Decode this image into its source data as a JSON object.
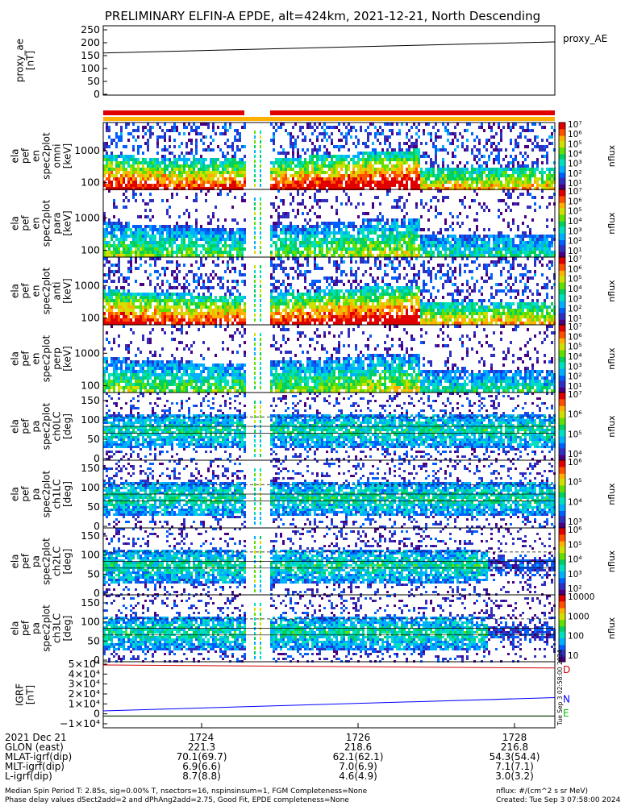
{
  "title": "PRELIMINARY ELFIN-A EPDE, alt=424km, 2021-12-21, North Descending",
  "colors": {
    "bar_red": "#e00000",
    "bar_yellow": "#ffb000",
    "D": "#d00000",
    "N": "#0000ff",
    "E": "#00c000"
  },
  "chart_data": [
    {
      "type": "line",
      "panel": "proxy_ae",
      "ylabel": [
        "proxy_ae",
        "[nT]"
      ],
      "ylim": [
        0,
        250
      ],
      "yticks": [
        "250",
        "200",
        "150",
        "100",
        "50",
        "0"
      ],
      "series": [
        {
          "name": "proxy_AE",
          "values": [
            157,
            200
          ]
        }
      ]
    },
    {
      "type": "heatmap",
      "panel": "ela pef en spec2plot omni",
      "ylabel": [
        "ela",
        "pef",
        "en",
        "spec2plot",
        "omni",
        "[keV]"
      ],
      "yticks": [
        "1000",
        "100"
      ],
      "colorbar": {
        "label": "nflux",
        "ticks": [
          "10⁷",
          "10⁶",
          "10⁵",
          "10⁴",
          "10³",
          "10²",
          "10¹"
        ]
      }
    },
    {
      "type": "heatmap",
      "panel": "ela pef en spec2plot para",
      "ylabel": [
        "ela",
        "pef",
        "en",
        "spec2plot",
        "para",
        "[keV]"
      ],
      "yticks": [
        "1000",
        "100"
      ],
      "colorbar": {
        "label": "nflux",
        "ticks": [
          "10⁷",
          "10⁶",
          "10⁵",
          "10⁴",
          "10³",
          "10²",
          "10¹"
        ]
      }
    },
    {
      "type": "heatmap",
      "panel": "ela pef en spec2plot anti",
      "ylabel": [
        "ela",
        "pef",
        "en",
        "spec2plot",
        "anti",
        "[keV]"
      ],
      "yticks": [
        "1000",
        "100"
      ],
      "colorbar": {
        "label": "nflux",
        "ticks": [
          "10⁷",
          "10⁶",
          "10⁵",
          "10⁴",
          "10³",
          "10²",
          "10¹"
        ]
      }
    },
    {
      "type": "heatmap",
      "panel": "ela pef en spec2plot perp",
      "ylabel": [
        "ela",
        "pef",
        "en",
        "spec2plot",
        "perp",
        "[keV]"
      ],
      "yticks": [
        "1000",
        "100"
      ],
      "colorbar": {
        "label": "nflux",
        "ticks": [
          "10⁷",
          "10⁶",
          "10⁵",
          "10⁴",
          "10³",
          "10²",
          "10¹"
        ]
      }
    },
    {
      "type": "heatmap",
      "panel": "ela pef pa spec2plot ch0LC",
      "ylabel": [
        "ela",
        "pef",
        "pa",
        "spec2plot",
        "ch0LC",
        "[deg]"
      ],
      "yticks": [
        "150",
        "100",
        "50",
        "0"
      ],
      "colorbar": {
        "label": "nflux",
        "ticks": [
          "10⁷",
          "10⁶",
          "10⁵",
          "10⁴"
        ]
      }
    },
    {
      "type": "heatmap",
      "panel": "ela pef pa spec2plot ch1LC",
      "ylabel": [
        "ela",
        "pef",
        "pa",
        "spec2plot",
        "ch1LC",
        "[deg]"
      ],
      "yticks": [
        "150",
        "100",
        "50",
        "0"
      ],
      "colorbar": {
        "label": "nflux",
        "ticks": [
          "10⁶",
          "10⁵",
          "10⁴",
          "10³"
        ]
      }
    },
    {
      "type": "heatmap",
      "panel": "ela pef pa spec2plot ch2LC",
      "ylabel": [
        "ela",
        "pef",
        "pa",
        "spec2plot",
        "ch2LC",
        "[deg]"
      ],
      "yticks": [
        "150",
        "100",
        "50",
        "0"
      ],
      "colorbar": {
        "label": "nflux",
        "ticks": [
          "10⁶",
          "10⁵",
          "10⁴",
          "10³",
          "10²"
        ]
      }
    },
    {
      "type": "heatmap",
      "panel": "ela pef pa spec2plot ch3LC",
      "ylabel": [
        "ela",
        "pef",
        "pa",
        "spec2plot",
        "ch3LC",
        "[deg]"
      ],
      "yticks": [
        "150",
        "100",
        "50",
        "0"
      ],
      "colorbar": {
        "label": "nflux",
        "ticks": [
          "10000",
          "1000",
          "100",
          "10"
        ]
      }
    },
    {
      "type": "line",
      "panel": "IGRF",
      "ylabel": [
        "IGRF",
        "[nT]"
      ],
      "ylim": [
        -10000,
        50000
      ],
      "yticks": [
        "5×10⁴",
        "4×10⁴",
        "3×10⁴",
        "2×10⁴",
        "1×10⁴",
        "0",
        "−1×10⁴"
      ],
      "series": [
        {
          "name": "D",
          "values": [
            50000,
            47000
          ]
        },
        {
          "name": "N",
          "values": [
            5000,
            18000
          ]
        },
        {
          "name": "E",
          "values": [
            0,
            0
          ]
        }
      ]
    }
  ],
  "side_stamp": "Tue Sep  3 02:58:00 2024",
  "orbit": {
    "labels": [
      "2021 Dec 21",
      "GLON (east)",
      "MLAT-igrf(dip)",
      "MLT-igrf(dip)",
      "L-igrf(dip)"
    ],
    "columns": [
      {
        "time": "1724",
        "values": [
          "221.3",
          "70.1(69.7)",
          "6.9(6.6)",
          "8.7(8.8)"
        ]
      },
      {
        "time": "1726",
        "values": [
          "218.6",
          "62.1(62.1)",
          "7.0(6.9)",
          "4.6(4.9)"
        ]
      },
      {
        "time": "1728",
        "values": [
          "216.8",
          "54.3(54.4)",
          "7.1(7.1)",
          "3.0(3.2)"
        ]
      }
    ]
  },
  "footer": {
    "line1": "Median Spin Period T: 2.85s, sig=0.00% T, nsectors=16, nspinsinsum=1, FGM Completeness=None",
    "line2": "Phase delay values dSect2add=2 and dPhAng2add=2.75, Good Fit, EPDE completeness=None",
    "units": "nflux: #/(cm^2 s sr MeV)",
    "created": "Created: Tue Sep  3 07:58:00 2024"
  }
}
